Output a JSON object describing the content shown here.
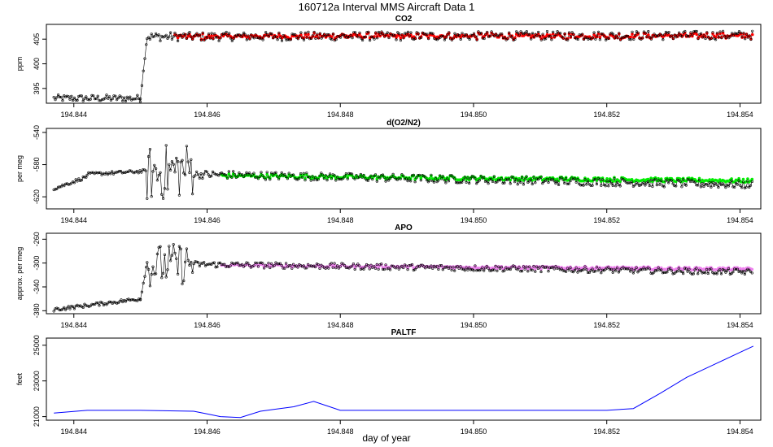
{
  "figure": {
    "title": "160712a   Interval MMS Aircraft Data 1",
    "xlabel": "day of year"
  },
  "chart_data": [
    {
      "type": "scatter",
      "title": "CO2",
      "ylabel": "ppm",
      "xlim": [
        194.8436,
        194.8543
      ],
      "ylim": [
        392,
        408
      ],
      "xticks": [
        194.844,
        194.846,
        194.848,
        194.85,
        194.852,
        194.854
      ],
      "xtick_labels": [
        "194.844",
        "194.846",
        "194.848",
        "194.850",
        "194.852",
        "194.854"
      ],
      "yticks": [
        395,
        400,
        405
      ],
      "ytick_labels": [
        "395",
        "400",
        "405"
      ],
      "series_color": "#ff0000",
      "line_color": "#000000",
      "segments": [
        {
          "x0": 194.8437,
          "x1": 194.845,
          "y0": 393,
          "y1": 393,
          "amp": 0.7
        },
        {
          "x0": 194.845,
          "x1": 194.8451,
          "y0": 393,
          "y1": 405.5,
          "amp": 0.2
        },
        {
          "x0": 194.8451,
          "x1": 194.8542,
          "y0": 405.5,
          "y1": 405.8,
          "amp": 0.9
        }
      ],
      "colored_range": [
        194.8455,
        194.8542
      ],
      "colored_level": 405.6
    },
    {
      "type": "scatter",
      "title": "d(O2/N2)",
      "ylabel": "per meg",
      "xlim": [
        194.8436,
        194.8543
      ],
      "ylim": [
        -635,
        -535
      ],
      "xticks": [
        194.844,
        194.846,
        194.848,
        194.85,
        194.852,
        194.854
      ],
      "xtick_labels": [
        "194.844",
        "194.846",
        "194.848",
        "194.850",
        "194.852",
        "194.854"
      ],
      "yticks": [
        -620,
        -580,
        -540
      ],
      "ytick_labels": [
        "-620",
        "-580",
        "-540"
      ],
      "series_color": "#00ee00",
      "line_color": "#000000",
      "segments": [
        {
          "x0": 194.8437,
          "x1": 194.8442,
          "y0": -610,
          "y1": -595,
          "amp": 2
        },
        {
          "x0": 194.8442,
          "x1": 194.8451,
          "y0": -592,
          "y1": -588,
          "amp": 2
        },
        {
          "x0": 194.8451,
          "x1": 194.8458,
          "y0": -592,
          "y1": -585,
          "amp": 35
        },
        {
          "x0": 194.8458,
          "x1": 194.8542,
          "y0": -592,
          "y1": -605,
          "amp": 5
        }
      ],
      "colored_range": [
        194.8462,
        194.8542
      ],
      "colored_level": -595
    },
    {
      "type": "scatter",
      "title": "APO",
      "ylabel": "approx. per meg",
      "xlim": [
        194.8436,
        194.8543
      ],
      "ylim": [
        -385,
        -250
      ],
      "xticks": [
        194.844,
        194.846,
        194.848,
        194.85,
        194.852,
        194.854
      ],
      "xtick_labels": [
        "194.844",
        "194.846",
        "194.848",
        "194.850",
        "194.852",
        "194.854"
      ],
      "yticks": [
        -380,
        -340,
        -300,
        -260
      ],
      "ytick_labels": [
        "-380",
        "-340",
        "-300",
        "-260"
      ],
      "series_color": "#ee82ee",
      "line_color": "#000000",
      "segments": [
        {
          "x0": 194.8437,
          "x1": 194.845,
          "y0": -378,
          "y1": -360,
          "amp": 3
        },
        {
          "x0": 194.845,
          "x1": 194.8451,
          "y0": -360,
          "y1": -300,
          "amp": 2
        },
        {
          "x0": 194.8451,
          "x1": 194.8458,
          "y0": -305,
          "y1": -300,
          "amp": 35
        },
        {
          "x0": 194.8458,
          "x1": 194.8542,
          "y0": -302,
          "y1": -315,
          "amp": 5
        }
      ],
      "colored_range": [
        194.8462,
        194.8542
      ],
      "colored_level": -305
    },
    {
      "type": "line",
      "title": "PALTF",
      "ylabel": "feet",
      "xlim": [
        194.8436,
        194.8543
      ],
      "ylim": [
        20800,
        25400
      ],
      "xticks": [
        194.844,
        194.846,
        194.848,
        194.85,
        194.852,
        194.854
      ],
      "xtick_labels": [
        "194.844",
        "194.846",
        "194.848",
        "194.850",
        "194.852",
        "194.854"
      ],
      "yticks": [
        21000,
        23000,
        25000
      ],
      "ytick_labels": [
        "21000",
        "23000",
        "25000"
      ],
      "series_color": "#0000ff",
      "x": [
        194.8437,
        194.8442,
        194.845,
        194.8458,
        194.846,
        194.8462,
        194.8465,
        194.8468,
        194.847,
        194.8473,
        194.8476,
        194.8478,
        194.848,
        194.849,
        194.85,
        194.851,
        194.852,
        194.8524,
        194.8528,
        194.8532,
        194.8536,
        194.854,
        194.8542
      ],
      "y": [
        21200,
        21350,
        21350,
        21300,
        21150,
        21000,
        20950,
        21300,
        21400,
        21550,
        21850,
        21600,
        21350,
        21350,
        21350,
        21350,
        21350,
        21450,
        22300,
        23200,
        23900,
        24600,
        24950
      ]
    }
  ]
}
